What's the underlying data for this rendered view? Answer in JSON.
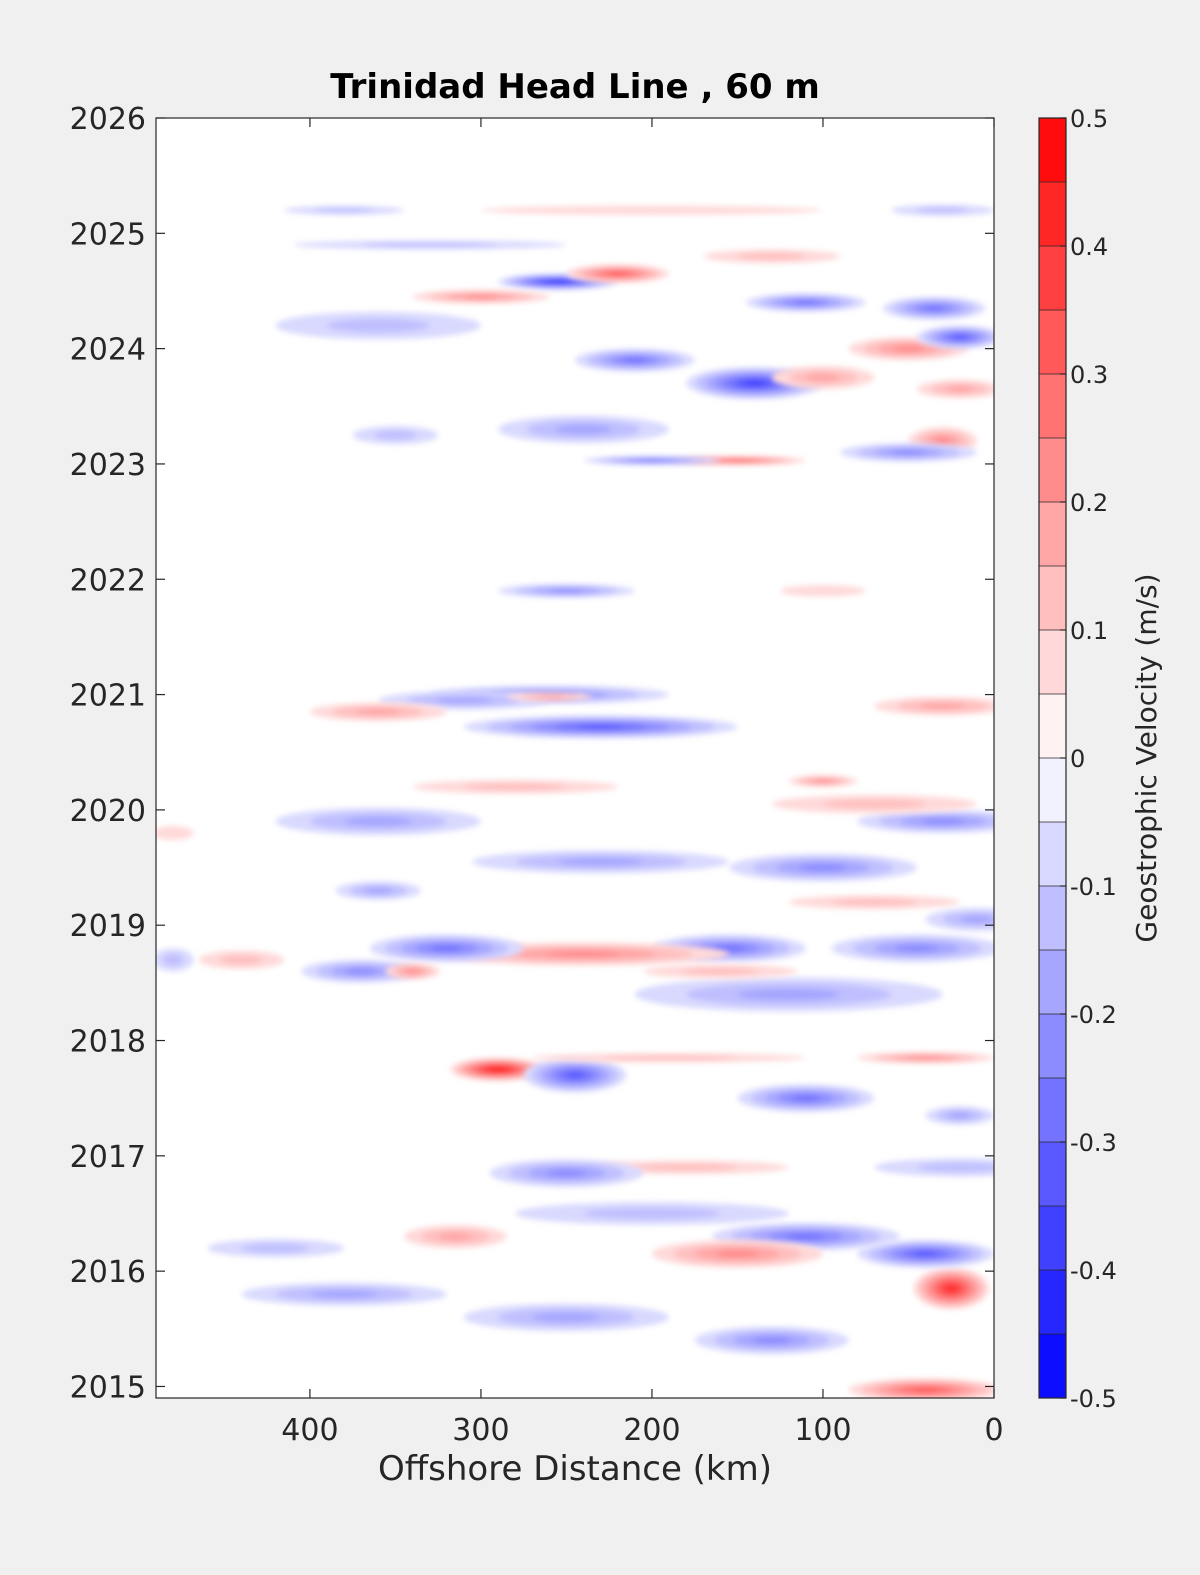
{
  "chart_data": {
    "type": "heatmap",
    "title": "Trinidad Head Line , 60 m",
    "xlabel": "Offshore Distance (km)",
    "ylabel": "",
    "x_direction": "reversed",
    "xlim": [
      490,
      0
    ],
    "ylim": [
      2014.9,
      2026
    ],
    "x_ticks": [
      400,
      300,
      200,
      100,
      0
    ],
    "y_ticks": [
      2015,
      2016,
      2017,
      2018,
      2019,
      2020,
      2021,
      2022,
      2023,
      2024,
      2025,
      2026
    ],
    "colorbar": {
      "label": "Geostrophic Velocity (m/s)",
      "range": [
        -0.5,
        0.5
      ],
      "step": 0.05,
      "ticks": [
        0.5,
        0.4,
        0.3,
        0.2,
        0.1,
        0,
        -0.1,
        -0.2,
        -0.3,
        -0.4,
        -0.5
      ],
      "tick_labels": [
        "0.5",
        "0.4",
        "0.3",
        "0.2",
        "0.1",
        "0",
        "-0.1",
        "-0.2",
        "-0.3",
        "-0.4",
        "-0.5"
      ],
      "positive_color": "#ff0000",
      "negative_color": "#0000ff",
      "zero_color": "#ffffff"
    },
    "grid": false,
    "features": [
      {
        "x": 25,
        "y": 2015.85,
        "rx": 22,
        "ry": 0.18,
        "value": 0.4
      },
      {
        "x": 40,
        "y": 2014.97,
        "rx": 45,
        "ry": 0.1,
        "value": 0.3
      },
      {
        "x": 40,
        "y": 2016.15,
        "rx": 40,
        "ry": 0.12,
        "value": -0.3
      },
      {
        "x": 110,
        "y": 2016.3,
        "rx": 55,
        "ry": 0.12,
        "value": -0.25
      },
      {
        "x": 150,
        "y": 2016.15,
        "rx": 50,
        "ry": 0.12,
        "value": 0.2
      },
      {
        "x": 130,
        "y": 2015.4,
        "rx": 45,
        "ry": 0.12,
        "value": -0.2
      },
      {
        "x": 250,
        "y": 2015.6,
        "rx": 60,
        "ry": 0.12,
        "value": -0.15
      },
      {
        "x": 380,
        "y": 2015.8,
        "rx": 60,
        "ry": 0.1,
        "value": -0.15
      },
      {
        "x": 420,
        "y": 2016.2,
        "rx": 40,
        "ry": 0.08,
        "value": -0.1
      },
      {
        "x": 315,
        "y": 2016.3,
        "rx": 30,
        "ry": 0.1,
        "value": 0.15
      },
      {
        "x": 200,
        "y": 2016.5,
        "rx": 80,
        "ry": 0.1,
        "value": -0.1
      },
      {
        "x": 180,
        "y": 2016.9,
        "rx": 60,
        "ry": 0.06,
        "value": 0.1
      },
      {
        "x": 250,
        "y": 2016.85,
        "rx": 45,
        "ry": 0.12,
        "value": -0.2
      },
      {
        "x": 20,
        "y": 2016.9,
        "rx": 50,
        "ry": 0.08,
        "value": -0.1
      },
      {
        "x": 110,
        "y": 2017.5,
        "rx": 40,
        "ry": 0.12,
        "value": -0.25
      },
      {
        "x": 290,
        "y": 2017.75,
        "rx": 28,
        "ry": 0.1,
        "value": 0.45
      },
      {
        "x": 245,
        "y": 2017.7,
        "rx": 30,
        "ry": 0.15,
        "value": -0.3
      },
      {
        "x": 190,
        "y": 2017.85,
        "rx": 80,
        "ry": 0.04,
        "value": 0.1
      },
      {
        "x": 40,
        "y": 2017.85,
        "rx": 40,
        "ry": 0.05,
        "value": 0.2
      },
      {
        "x": 20,
        "y": 2017.35,
        "rx": 20,
        "ry": 0.08,
        "value": -0.15
      },
      {
        "x": 120,
        "y": 2018.4,
        "rx": 90,
        "ry": 0.15,
        "value": -0.15
      },
      {
        "x": 155,
        "y": 2018.8,
        "rx": 45,
        "ry": 0.12,
        "value": -0.25
      },
      {
        "x": 240,
        "y": 2018.75,
        "rx": 85,
        "ry": 0.1,
        "value": 0.2
      },
      {
        "x": 320,
        "y": 2018.8,
        "rx": 45,
        "ry": 0.12,
        "value": -0.25
      },
      {
        "x": 370,
        "y": 2018.6,
        "rx": 35,
        "ry": 0.1,
        "value": -0.2
      },
      {
        "x": 340,
        "y": 2018.6,
        "rx": 16,
        "ry": 0.07,
        "value": 0.2
      },
      {
        "x": 45,
        "y": 2018.8,
        "rx": 50,
        "ry": 0.12,
        "value": -0.2
      },
      {
        "x": 160,
        "y": 2018.6,
        "rx": 45,
        "ry": 0.06,
        "value": 0.12
      },
      {
        "x": 440,
        "y": 2018.7,
        "rx": 25,
        "ry": 0.08,
        "value": 0.1
      },
      {
        "x": 10,
        "y": 2019.05,
        "rx": 30,
        "ry": 0.1,
        "value": -0.15
      },
      {
        "x": 100,
        "y": 2019.5,
        "rx": 55,
        "ry": 0.12,
        "value": -0.2
      },
      {
        "x": 230,
        "y": 2019.55,
        "rx": 75,
        "ry": 0.1,
        "value": -0.15
      },
      {
        "x": 360,
        "y": 2019.3,
        "rx": 25,
        "ry": 0.08,
        "value": -0.15
      },
      {
        "x": 70,
        "y": 2019.2,
        "rx": 50,
        "ry": 0.06,
        "value": 0.1
      },
      {
        "x": 30,
        "y": 2019.9,
        "rx": 50,
        "ry": 0.1,
        "value": -0.2
      },
      {
        "x": 360,
        "y": 2019.9,
        "rx": 60,
        "ry": 0.12,
        "value": -0.15
      },
      {
        "x": 70,
        "y": 2020.05,
        "rx": 60,
        "ry": 0.08,
        "value": 0.1
      },
      {
        "x": 100,
        "y": 2020.25,
        "rx": 20,
        "ry": 0.05,
        "value": 0.2
      },
      {
        "x": 280,
        "y": 2020.2,
        "rx": 60,
        "ry": 0.06,
        "value": 0.1
      },
      {
        "x": 230,
        "y": 2020.72,
        "rx": 80,
        "ry": 0.1,
        "value": -0.3
      },
      {
        "x": 260,
        "y": 2021.0,
        "rx": 70,
        "ry": 0.08,
        "value": -0.2
      },
      {
        "x": 310,
        "y": 2020.95,
        "rx": 50,
        "ry": 0.08,
        "value": -0.15
      },
      {
        "x": 260,
        "y": 2020.98,
        "rx": 25,
        "ry": 0.04,
        "value": 0.15
      },
      {
        "x": 360,
        "y": 2020.85,
        "rx": 40,
        "ry": 0.08,
        "value": 0.15
      },
      {
        "x": 30,
        "y": 2020.9,
        "rx": 40,
        "ry": 0.08,
        "value": 0.15
      },
      {
        "x": 250,
        "y": 2021.9,
        "rx": 40,
        "ry": 0.06,
        "value": -0.2
      },
      {
        "x": 100,
        "y": 2021.9,
        "rx": 25,
        "ry": 0.05,
        "value": 0.08
      },
      {
        "x": 30,
        "y": 2023.2,
        "rx": 20,
        "ry": 0.12,
        "value": 0.2
      },
      {
        "x": 50,
        "y": 2023.1,
        "rx": 40,
        "ry": 0.08,
        "value": -0.2
      },
      {
        "x": 150,
        "y": 2023.03,
        "rx": 40,
        "ry": 0.04,
        "value": 0.3
      },
      {
        "x": 200,
        "y": 2023.03,
        "rx": 40,
        "ry": 0.04,
        "value": -0.25
      },
      {
        "x": 240,
        "y": 2023.3,
        "rx": 50,
        "ry": 0.12,
        "value": -0.15
      },
      {
        "x": 350,
        "y": 2023.25,
        "rx": 25,
        "ry": 0.08,
        "value": -0.1
      },
      {
        "x": 140,
        "y": 2023.7,
        "rx": 40,
        "ry": 0.14,
        "value": -0.35
      },
      {
        "x": 100,
        "y": 2023.75,
        "rx": 30,
        "ry": 0.1,
        "value": 0.15
      },
      {
        "x": 210,
        "y": 2023.9,
        "rx": 35,
        "ry": 0.1,
        "value": -0.25
      },
      {
        "x": 50,
        "y": 2024.0,
        "rx": 35,
        "ry": 0.1,
        "value": 0.2
      },
      {
        "x": 20,
        "y": 2024.1,
        "rx": 25,
        "ry": 0.1,
        "value": -0.3
      },
      {
        "x": 35,
        "y": 2024.35,
        "rx": 30,
        "ry": 0.1,
        "value": -0.25
      },
      {
        "x": 110,
        "y": 2024.4,
        "rx": 35,
        "ry": 0.08,
        "value": -0.25
      },
      {
        "x": 20,
        "y": 2023.65,
        "rx": 25,
        "ry": 0.08,
        "value": 0.15
      },
      {
        "x": 255,
        "y": 2024.58,
        "rx": 35,
        "ry": 0.07,
        "value": -0.4
      },
      {
        "x": 220,
        "y": 2024.65,
        "rx": 30,
        "ry": 0.08,
        "value": 0.3
      },
      {
        "x": 300,
        "y": 2024.45,
        "rx": 40,
        "ry": 0.06,
        "value": 0.2
      },
      {
        "x": 360,
        "y": 2024.2,
        "rx": 60,
        "ry": 0.12,
        "value": -0.1
      },
      {
        "x": 330,
        "y": 2024.9,
        "rx": 80,
        "ry": 0.04,
        "value": -0.12
      },
      {
        "x": 200,
        "y": 2025.2,
        "rx": 100,
        "ry": 0.04,
        "value": 0.08
      },
      {
        "x": 380,
        "y": 2025.2,
        "rx": 35,
        "ry": 0.04,
        "value": -0.12
      },
      {
        "x": 30,
        "y": 2025.2,
        "rx": 30,
        "ry": 0.05,
        "value": -0.1
      },
      {
        "x": 130,
        "y": 2024.8,
        "rx": 40,
        "ry": 0.06,
        "value": 0.1
      },
      {
        "x": 480,
        "y": 2018.7,
        "rx": 12,
        "ry": 0.1,
        "value": -0.12
      },
      {
        "x": 480,
        "y": 2019.8,
        "rx": 12,
        "ry": 0.06,
        "value": 0.08
      }
    ]
  }
}
